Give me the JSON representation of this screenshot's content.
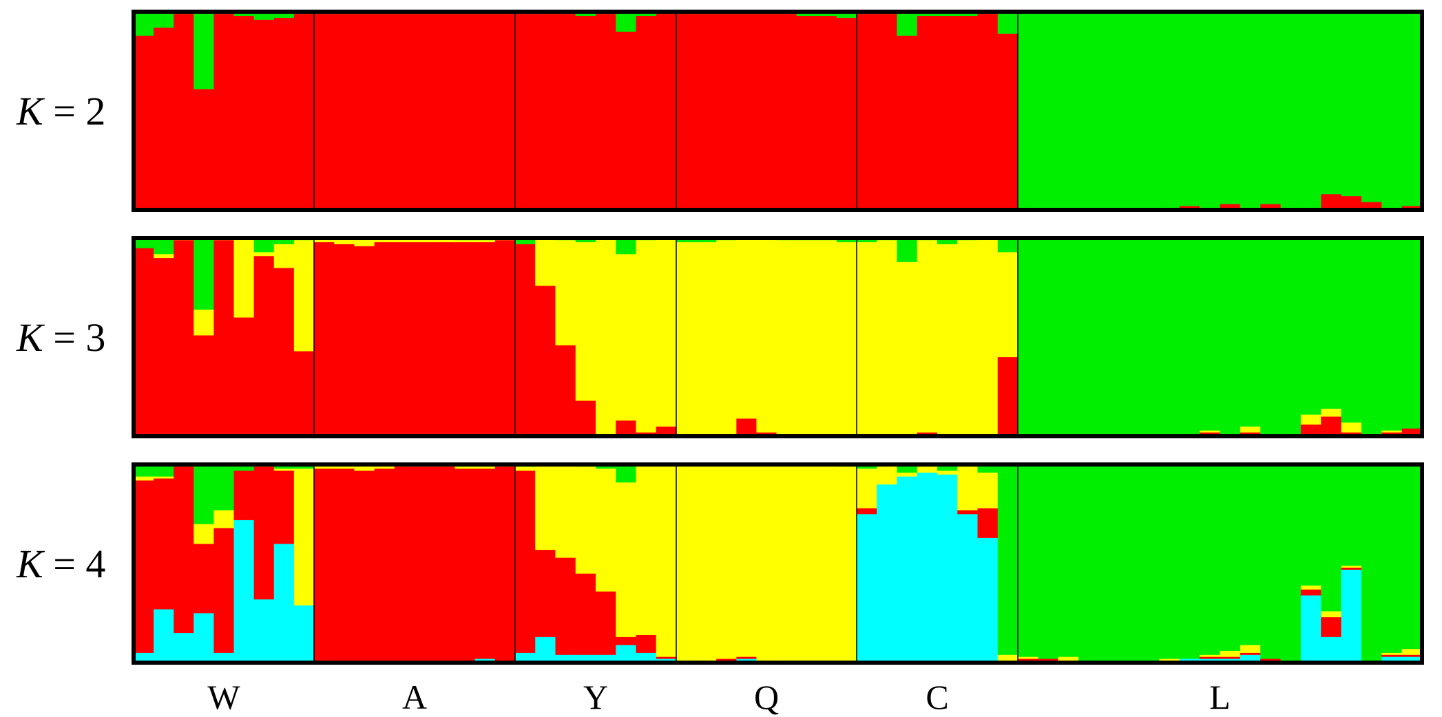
{
  "chart_data": {
    "type": "bar",
    "stacked": true,
    "normalized": true,
    "ylim": [
      0,
      1
    ],
    "grid": false,
    "legend": "none",
    "populations": [
      {
        "name": "W",
        "n": 9
      },
      {
        "name": "A",
        "n": 10
      },
      {
        "name": "Y",
        "n": 8
      },
      {
        "name": "Q",
        "n": 9
      },
      {
        "name": "C",
        "n": 8
      },
      {
        "name": "L",
        "n": 20
      }
    ],
    "panels": [
      {
        "k_prefix": "K",
        "k_rest": " = 2",
        "cluster_colors": [
          "#ff0000",
          "#00ee00"
        ],
        "individuals": [
          [
            0.88,
            0.12
          ],
          [
            0.92,
            0.08
          ],
          [
            0.99,
            0.01
          ],
          [
            0.61,
            0.39
          ],
          [
            0.99,
            0.01
          ],
          [
            0.98,
            0.02
          ],
          [
            0.96,
            0.04
          ],
          [
            0.97,
            0.03
          ],
          [
            0.99,
            0.01
          ],
          [
            0.99,
            0.01
          ],
          [
            0.99,
            0.01
          ],
          [
            0.99,
            0.01
          ],
          [
            0.99,
            0.01
          ],
          [
            0.99,
            0.01
          ],
          [
            0.99,
            0.01
          ],
          [
            0.99,
            0.01
          ],
          [
            0.99,
            0.01
          ],
          [
            0.99,
            0.01
          ],
          [
            0.99,
            0.01
          ],
          [
            0.99,
            0.01
          ],
          [
            0.99,
            0.01
          ],
          [
            0.99,
            0.01
          ],
          [
            0.98,
            0.02
          ],
          [
            0.99,
            0.01
          ],
          [
            0.9,
            0.1
          ],
          [
            0.98,
            0.02
          ],
          [
            0.99,
            0.01
          ],
          [
            0.99,
            0.01
          ],
          [
            0.99,
            0.01
          ],
          [
            0.99,
            0.01
          ],
          [
            0.99,
            0.01
          ],
          [
            0.99,
            0.01
          ],
          [
            0.99,
            0.01
          ],
          [
            0.98,
            0.02
          ],
          [
            0.98,
            0.02
          ],
          [
            0.97,
            0.03
          ],
          [
            0.99,
            0.01
          ],
          [
            0.99,
            0.01
          ],
          [
            0.88,
            0.12
          ],
          [
            0.98,
            0.02
          ],
          [
            0.98,
            0.02
          ],
          [
            0.98,
            0.02
          ],
          [
            0.99,
            0.01
          ],
          [
            0.89,
            0.11
          ],
          [
            0.01,
            0.99
          ],
          [
            0.01,
            0.99
          ],
          [
            0.01,
            0.99
          ],
          [
            0.01,
            0.99
          ],
          [
            0.01,
            0.99
          ],
          [
            0.01,
            0.99
          ],
          [
            0.01,
            0.99
          ],
          [
            0.01,
            0.99
          ],
          [
            0.02,
            0.98
          ],
          [
            0.01,
            0.99
          ],
          [
            0.03,
            0.97
          ],
          [
            0.01,
            0.99
          ],
          [
            0.03,
            0.97
          ],
          [
            0.01,
            0.99
          ],
          [
            0.01,
            0.99
          ],
          [
            0.08,
            0.92
          ],
          [
            0.07,
            0.93
          ],
          [
            0.04,
            0.96
          ],
          [
            0.01,
            0.99
          ],
          [
            0.02,
            0.98
          ]
        ]
      },
      {
        "k_prefix": "K",
        "k_rest": " = 3",
        "cluster_colors": [
          "#ff0000",
          "#ffff00",
          "#00ee00"
        ],
        "individuals": [
          [
            0.95,
            0.0,
            0.05
          ],
          [
            0.9,
            0.02,
            0.08
          ],
          [
            0.99,
            0.01,
            0.0
          ],
          [
            0.51,
            0.13,
            0.36
          ],
          [
            0.99,
            0.01,
            0.0
          ],
          [
            0.6,
            0.4,
            0.0
          ],
          [
            0.91,
            0.02,
            0.07
          ],
          [
            0.85,
            0.12,
            0.03
          ],
          [
            0.43,
            0.56,
            0.01
          ],
          [
            0.98,
            0.02,
            0.0
          ],
          [
            0.97,
            0.03,
            0.0
          ],
          [
            0.96,
            0.04,
            0.0
          ],
          [
            0.98,
            0.02,
            0.0
          ],
          [
            0.98,
            0.02,
            0.0
          ],
          [
            0.98,
            0.02,
            0.0
          ],
          [
            0.98,
            0.02,
            0.0
          ],
          [
            0.98,
            0.01,
            0.01
          ],
          [
            0.98,
            0.01,
            0.01
          ],
          [
            0.99,
            0.01,
            0.0
          ],
          [
            0.97,
            0.0,
            0.03
          ],
          [
            0.76,
            0.24,
            0.0
          ],
          [
            0.46,
            0.53,
            0.01
          ],
          [
            0.18,
            0.8,
            0.02
          ],
          [
            0.01,
            0.99,
            0.0
          ],
          [
            0.08,
            0.84,
            0.08
          ],
          [
            0.02,
            0.97,
            0.01
          ],
          [
            0.05,
            0.95,
            0.0
          ],
          [
            0.0,
            0.98,
            0.02
          ],
          [
            0.0,
            0.98,
            0.02
          ],
          [
            0.0,
            0.99,
            0.01
          ],
          [
            0.09,
            0.91,
            0.0
          ],
          [
            0.02,
            0.98,
            0.0
          ],
          [
            0.0,
            0.99,
            0.01
          ],
          [
            0.0,
            0.99,
            0.01
          ],
          [
            0.0,
            0.99,
            0.01
          ],
          [
            0.01,
            0.97,
            0.02
          ],
          [
            0.01,
            0.97,
            0.02
          ],
          [
            0.0,
            0.99,
            0.01
          ],
          [
            0.0,
            0.88,
            0.12
          ],
          [
            0.02,
            0.97,
            0.01
          ],
          [
            0.01,
            0.96,
            0.03
          ],
          [
            0.01,
            0.98,
            0.01
          ],
          [
            0.01,
            0.99,
            0.0
          ],
          [
            0.4,
            0.53,
            0.07
          ],
          [
            0.0,
            0.01,
            0.99
          ],
          [
            0.0,
            0.01,
            0.99
          ],
          [
            0.0,
            0.01,
            0.99
          ],
          [
            0.0,
            0.0,
            1.0
          ],
          [
            0.0,
            0.0,
            1.0
          ],
          [
            0.0,
            0.01,
            0.99
          ],
          [
            0.0,
            0.01,
            0.99
          ],
          [
            0.0,
            0.0,
            1.0
          ],
          [
            0.0,
            0.01,
            0.99
          ],
          [
            0.02,
            0.01,
            0.97
          ],
          [
            0.0,
            0.01,
            0.99
          ],
          [
            0.02,
            0.03,
            0.95
          ],
          [
            0.0,
            0.01,
            0.99
          ],
          [
            0.0,
            0.01,
            0.99
          ],
          [
            0.06,
            0.05,
            0.89
          ],
          [
            0.1,
            0.04,
            0.86
          ],
          [
            0.02,
            0.05,
            0.93
          ],
          [
            0.0,
            0.01,
            0.99
          ],
          [
            0.02,
            0.01,
            0.97
          ],
          [
            0.04,
            0.0,
            0.96
          ]
        ]
      },
      {
        "k_prefix": "K",
        "k_rest": " = 4",
        "cluster_colors": [
          "#00ffff",
          "#ff0000",
          "#ffff00",
          "#00ee00"
        ],
        "individuals": [
          [
            0.05,
            0.87,
            0.02,
            0.06
          ],
          [
            0.27,
            0.66,
            0.01,
            0.06
          ],
          [
            0.15,
            0.84,
            0.0,
            0.01
          ],
          [
            0.25,
            0.35,
            0.1,
            0.3
          ],
          [
            0.05,
            0.63,
            0.09,
            0.23
          ],
          [
            0.72,
            0.25,
            0.0,
            0.03
          ],
          [
            0.32,
            0.67,
            0.01,
            0.0
          ],
          [
            0.6,
            0.37,
            0.01,
            0.02
          ],
          [
            0.29,
            0.0,
            0.69,
            0.02
          ],
          [
            0.01,
            0.97,
            0.02,
            0.0
          ],
          [
            0.01,
            0.97,
            0.02,
            0.0
          ],
          [
            0.01,
            0.96,
            0.03,
            0.0
          ],
          [
            0.01,
            0.97,
            0.02,
            0.0
          ],
          [
            0.01,
            0.98,
            0.01,
            0.0
          ],
          [
            0.01,
            0.98,
            0.01,
            0.0
          ],
          [
            0.01,
            0.98,
            0.01,
            0.0
          ],
          [
            0.01,
            0.97,
            0.01,
            0.01
          ],
          [
            0.02,
            0.96,
            0.01,
            0.01
          ],
          [
            0.01,
            0.98,
            0.01,
            0.0
          ],
          [
            0.05,
            0.92,
            0.02,
            0.01
          ],
          [
            0.13,
            0.44,
            0.43,
            0.0
          ],
          [
            0.04,
            0.49,
            0.47,
            0.0
          ],
          [
            0.04,
            0.41,
            0.54,
            0.01
          ],
          [
            0.04,
            0.32,
            0.62,
            0.02
          ],
          [
            0.09,
            0.04,
            0.78,
            0.09
          ],
          [
            0.05,
            0.09,
            0.86,
            0.0
          ],
          [
            0.02,
            0.01,
            0.97,
            0.0
          ],
          [
            0.0,
            0.01,
            0.99,
            0.0
          ],
          [
            0.0,
            0.01,
            0.99,
            0.0
          ],
          [
            0.01,
            0.01,
            0.98,
            0.0
          ],
          [
            0.02,
            0.01,
            0.97,
            0.0
          ],
          [
            0.01,
            0.0,
            0.99,
            0.0
          ],
          [
            0.01,
            0.0,
            0.99,
            0.0
          ],
          [
            0.01,
            0.0,
            0.99,
            0.0
          ],
          [
            0.0,
            0.01,
            0.99,
            0.0
          ],
          [
            0.0,
            0.01,
            0.98,
            0.01
          ],
          [
            0.75,
            0.03,
            0.2,
            0.02
          ],
          [
            0.9,
            0.0,
            0.1,
            0.0
          ],
          [
            0.94,
            0.0,
            0.02,
            0.04
          ],
          [
            0.96,
            0.0,
            0.03,
            0.01
          ],
          [
            0.95,
            0.0,
            0.02,
            0.03
          ],
          [
            0.75,
            0.02,
            0.22,
            0.01
          ],
          [
            0.63,
            0.15,
            0.18,
            0.04
          ],
          [
            0.0,
            0.0,
            0.04,
            0.96
          ],
          [
            0.01,
            0.01,
            0.01,
            0.97
          ],
          [
            0.01,
            0.01,
            0.0,
            0.98
          ],
          [
            0.01,
            0.0,
            0.02,
            0.97
          ],
          [
            0.01,
            0.0,
            0.0,
            0.99
          ],
          [
            0.01,
            0.0,
            0.0,
            0.99
          ],
          [
            0.01,
            0.0,
            0.0,
            0.99
          ],
          [
            0.01,
            0.0,
            0.0,
            0.99
          ],
          [
            0.01,
            0.0,
            0.01,
            0.98
          ],
          [
            0.02,
            0.0,
            0.0,
            0.98
          ],
          [
            0.02,
            0.01,
            0.01,
            0.96
          ],
          [
            0.02,
            0.01,
            0.03,
            0.94
          ],
          [
            0.04,
            0.01,
            0.04,
            0.91
          ],
          [
            0.01,
            0.01,
            0.0,
            0.98
          ],
          [
            0.01,
            0.0,
            0.0,
            0.99
          ],
          [
            0.34,
            0.03,
            0.02,
            0.61
          ],
          [
            0.13,
            0.1,
            0.03,
            0.74
          ],
          [
            0.47,
            0.01,
            0.01,
            0.51
          ],
          [
            0.01,
            0.0,
            0.0,
            0.99
          ],
          [
            0.03,
            0.01,
            0.01,
            0.95
          ],
          [
            0.03,
            0.01,
            0.03,
            0.93
          ]
        ]
      }
    ]
  }
}
